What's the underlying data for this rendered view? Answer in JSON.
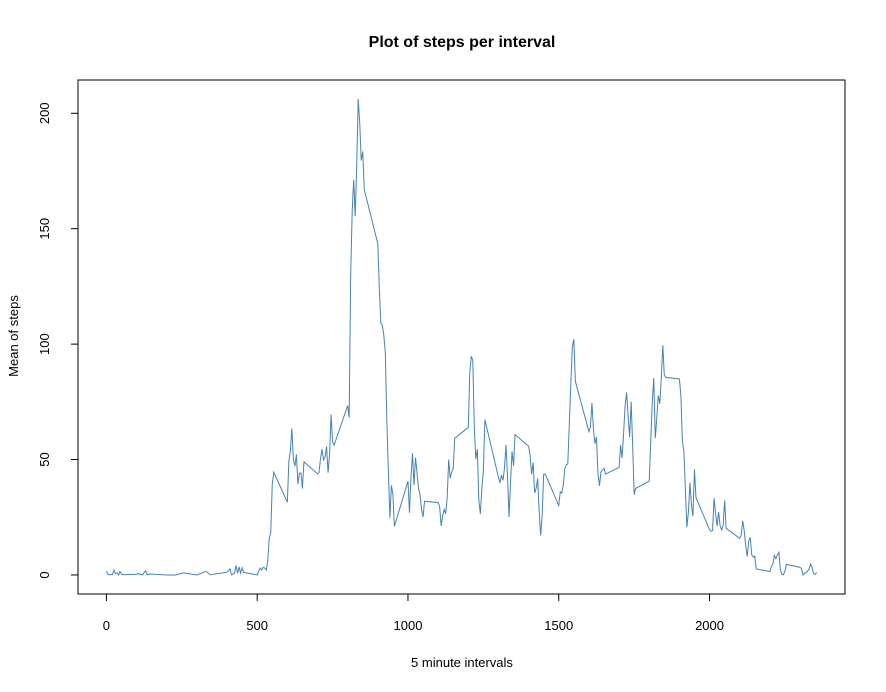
{
  "chart_data": {
    "type": "line",
    "title": "Plot of steps per interval",
    "x_label": "5 minute intervals",
    "y_label": "Mean of steps",
    "color": "#4682b4",
    "x": [
      0,
      5,
      10,
      15,
      20,
      25,
      30,
      35,
      40,
      45,
      50,
      55,
      100,
      105,
      110,
      115,
      120,
      125,
      130,
      135,
      140,
      145,
      200,
      230,
      255,
      300,
      330,
      345,
      400,
      410,
      415,
      420,
      425,
      430,
      435,
      440,
      445,
      450,
      455,
      500,
      505,
      510,
      515,
      520,
      525,
      530,
      535,
      540,
      545,
      550,
      555,
      600,
      605,
      610,
      615,
      620,
      625,
      630,
      635,
      640,
      645,
      650,
      655,
      700,
      705,
      710,
      715,
      720,
      725,
      730,
      735,
      740,
      745,
      750,
      755,
      800,
      805,
      810,
      815,
      820,
      825,
      830,
      835,
      840,
      845,
      850,
      855,
      900,
      905,
      910,
      915,
      920,
      925,
      930,
      935,
      940,
      945,
      950,
      955,
      1000,
      1005,
      1010,
      1015,
      1020,
      1025,
      1030,
      1035,
      1040,
      1045,
      1050,
      1055,
      1100,
      1105,
      1110,
      1115,
      1120,
      1125,
      1130,
      1135,
      1140,
      1145,
      1150,
      1155,
      1200,
      1205,
      1210,
      1215,
      1220,
      1225,
      1230,
      1235,
      1240,
      1245,
      1250,
      1255,
      1300,
      1305,
      1310,
      1315,
      1320,
      1325,
      1330,
      1335,
      1340,
      1345,
      1350,
      1355,
      1400,
      1405,
      1410,
      1415,
      1420,
      1425,
      1430,
      1435,
      1440,
      1445,
      1450,
      1455,
      1500,
      1505,
      1510,
      1515,
      1520,
      1525,
      1530,
      1535,
      1540,
      1545,
      1550,
      1555,
      1600,
      1605,
      1610,
      1615,
      1620,
      1625,
      1630,
      1635,
      1640,
      1645,
      1650,
      1655,
      1700,
      1705,
      1710,
      1715,
      1720,
      1725,
      1730,
      1735,
      1740,
      1745,
      1750,
      1755,
      1800,
      1805,
      1810,
      1815,
      1820,
      1825,
      1830,
      1835,
      1840,
      1845,
      1850,
      1855,
      1900,
      1905,
      1910,
      1915,
      1920,
      1925,
      1930,
      1935,
      1940,
      1945,
      1950,
      1955,
      2000,
      2005,
      2010,
      2015,
      2020,
      2025,
      2030,
      2035,
      2040,
      2045,
      2050,
      2055,
      2100,
      2105,
      2110,
      2115,
      2120,
      2125,
      2130,
      2135,
      2140,
      2145,
      2150,
      2155,
      2200,
      2205,
      2210,
      2215,
      2220,
      2225,
      2230,
      2235,
      2240,
      2245,
      2250,
      2255,
      2300,
      2305,
      2310,
      2315,
      2320,
      2325,
      2330,
      2335,
      2340,
      2345,
      2350,
      2355
    ],
    "values": [
      1.7,
      0.3,
      0.1,
      0.2,
      0.1,
      2.1,
      0.5,
      0.9,
      0,
      1.5,
      0.3,
      0.1,
      0.3,
      0.7,
      0.2,
      0.3,
      0,
      1.1,
      1.8,
      0.2,
      0.2,
      0.4,
      0,
      0,
      0.9,
      0,
      1.6,
      0.1,
      1.2,
      2.6,
      0,
      0.3,
      0.9,
      4.1,
      0.7,
      3.5,
      0.8,
      3.1,
      1.1,
      0,
      1.6,
      3,
      2.2,
      3.3,
      3,
      2.1,
      6.1,
      16,
      18.3,
      39.5,
      44.5,
      31.5,
      49.3,
      53.8,
      63.5,
      50,
      47.1,
      52.2,
      39.3,
      44,
      44.2,
      37.4,
      49,
      43.8,
      44.4,
      50.5,
      54.5,
      49.9,
      51,
      55.7,
      44.3,
      52.3,
      69.5,
      57.8,
      56.2,
      73.4,
      68.2,
      129.4,
      157.5,
      171.2,
      155.4,
      177.3,
      206.2,
      195.9,
      179.6,
      183.4,
      167,
      143.5,
      124,
      109.1,
      108.1,
      103.7,
      95.97,
      66.2,
      45.2,
      24.8,
      38.8,
      34.98,
      21.06,
      40.6,
      26.98,
      42.4,
      52.7,
      38.9,
      50.8,
      44.3,
      37.4,
      34.7,
      28.3,
      25.1,
      31.9,
      31.4,
      29.7,
      21.3,
      25.5,
      28.4,
      26.5,
      33.4,
      50,
      42,
      44.6,
      46,
      59.2,
      63.9,
      87.7,
      94.8,
      92.8,
      63.4,
      50.2,
      54.5,
      32.4,
      26.5,
      37.7,
      45.1,
      67.3,
      42.3,
      39.9,
      43.3,
      40.98,
      46.2,
      56.4,
      42.8,
      25.1,
      39.96,
      53.5,
      47.3,
      60.8,
      55.8,
      51.96,
      43.6,
      48.7,
      35.5,
      37.5,
      41.8,
      27.5,
      17.1,
      26.1,
      43.6,
      43.8,
      30,
      36.1,
      35.5,
      38.8,
      45.96,
      47.8,
      48.1,
      65.3,
      82.9,
      98.7,
      102.1,
      83.96,
      62.1,
      64.1,
      74.5,
      63.2,
      56.9,
      59.8,
      43.9,
      38.6,
      44.7,
      45.5,
      46.2,
      43.7,
      46.6,
      56.3,
      50.7,
      61.2,
      73.4,
      79.1,
      68.9,
      59.7,
      75.1,
      56.5,
      34.8,
      37.5,
      40.7,
      58,
      74.7,
      85.3,
      59.3,
      67.8,
      77.7,
      74.2,
      85.3,
      99.5,
      86.6,
      85.6,
      84.9,
      77.8,
      58,
      53.4,
      36.3,
      20.7,
      27.4,
      40,
      30.2,
      25.5,
      45.7,
      33.5,
      19.6,
      19,
      19.3,
      33.3,
      26.8,
      21.2,
      27.3,
      21.3,
      19.5,
      21.3,
      32.3,
      20.2,
      15.9,
      17.2,
      23.5,
      19.2,
      12.5,
      8,
      14.7,
      16.3,
      8.7,
      7.8,
      8.1,
      2.6,
      1.5,
      3.7,
      4.8,
      8.5,
      7.1,
      8.7,
      9.8,
      2.2,
      0.3,
      0.1,
      1.6,
      4.6,
      3.3,
      2.8,
      0,
      0.8,
      0.96,
      1.6,
      2.6,
      4.7,
      3.3,
      0.6,
      0.2,
      1.1
    ],
    "xlim": [
      -94.2,
      2449.2
    ],
    "xticks": [
      0,
      500,
      1000,
      1500,
      2000
    ],
    "ylim": [
      -8.25,
      214.42
    ],
    "yticks": [
      0,
      50,
      100,
      150,
      200
    ]
  }
}
